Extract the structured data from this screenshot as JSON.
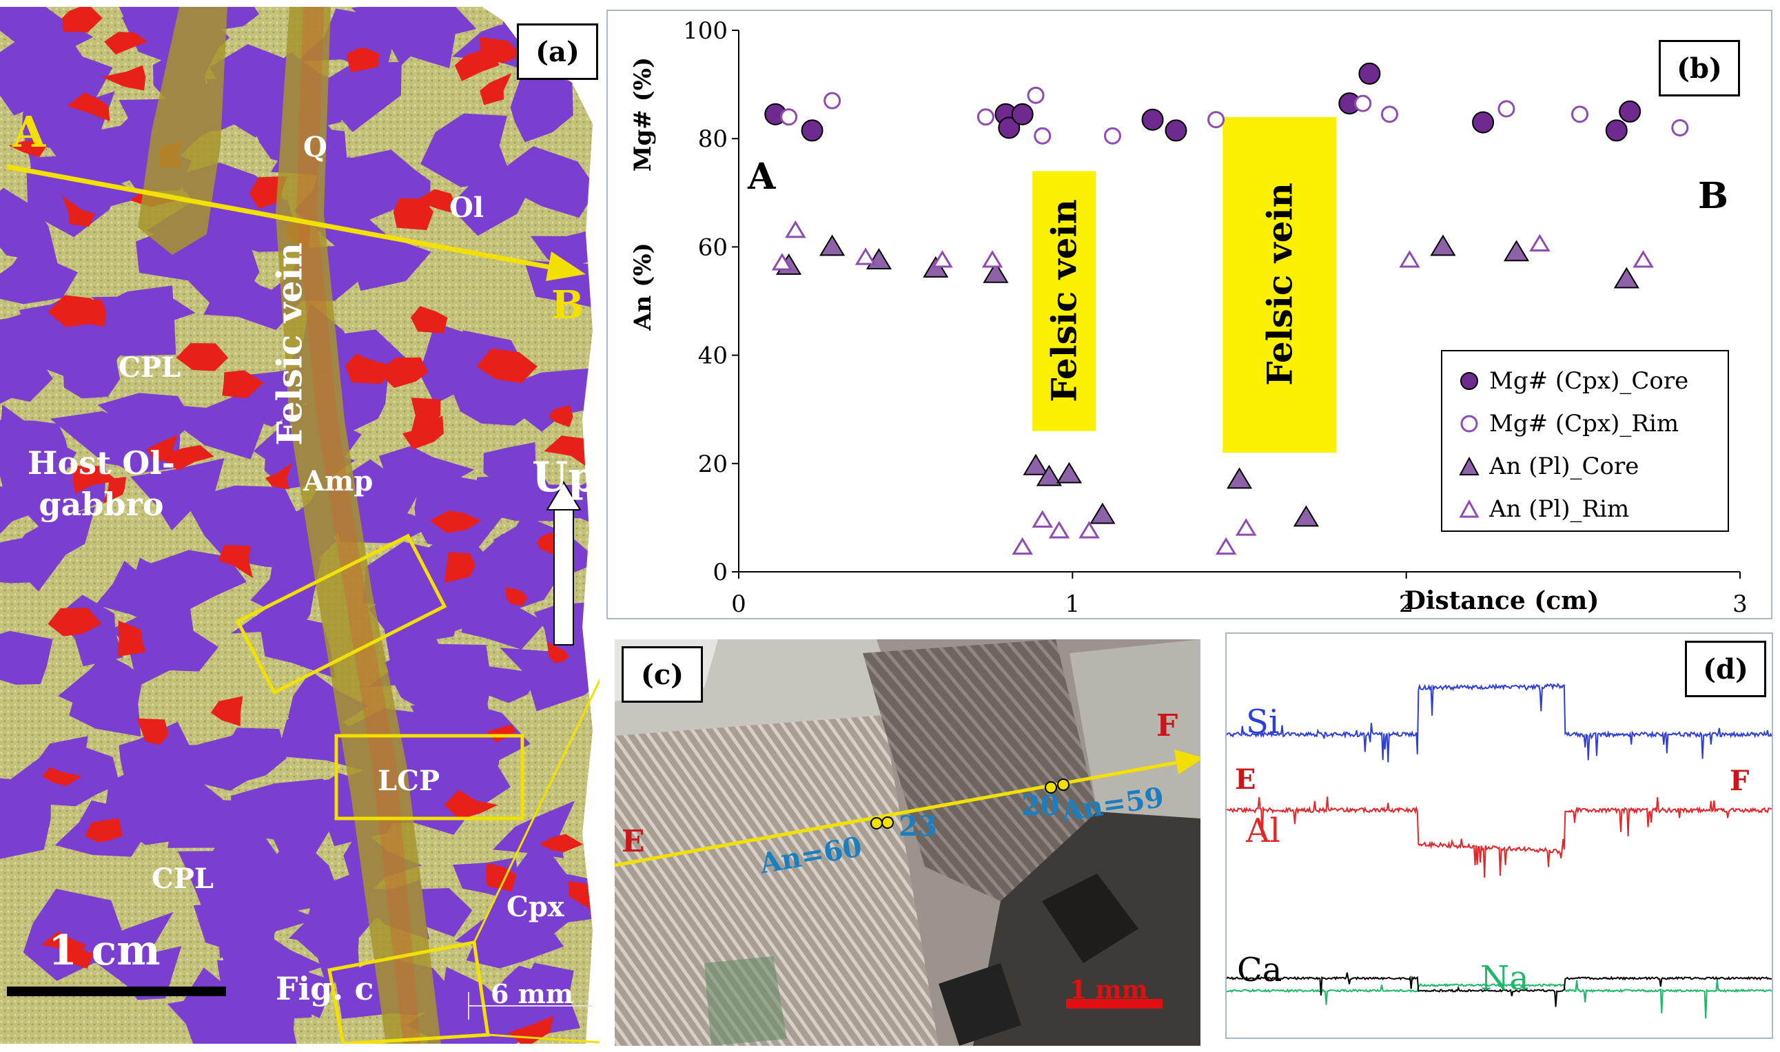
{
  "panel_a": {
    "tag": "(a)",
    "labels": {
      "A": "A",
      "B": "B",
      "Q": "Q",
      "Ol": "Ol",
      "felsic": "Felsic vein",
      "cpl_top": "CPL",
      "host": "Host Ol-",
      "host2": "gabbro",
      "amp": "Amp",
      "up": "Up",
      "lcp": "LCP",
      "cpl_bottom": "CPL",
      "cpx": "Cpx",
      "scale": "1 cm",
      "figc": "Fig. c",
      "mm": "6 mm"
    },
    "colors": {
      "matrix": "#c4c27a",
      "pyroxene": "#7a3ed0",
      "olivine": "#e8201a",
      "vein": "#a8942e",
      "arrow": "#f2e000"
    }
  },
  "panel_b": {
    "tag": "(b)",
    "label_A": "A",
    "label_B": "B",
    "vein_label": "Felsic vein",
    "legend": [
      {
        "label": "Mg# (Cpx)_Core",
        "marker": "circle-filled"
      },
      {
        "label": "Mg# (Cpx)_Rim",
        "marker": "circle-open"
      },
      {
        "label": "An (Pl)_Core",
        "marker": "triangle-filled"
      },
      {
        "label": "An (Pl)_Rim",
        "marker": "triangle-open"
      }
    ],
    "chart_data": {
      "type": "scatter",
      "xlabel": "Distance (cm)",
      "ylabel_top": "Mg# (%)",
      "ylabel_bottom": "An (%)",
      "xlim": [
        0,
        3
      ],
      "ylim": [
        0,
        100
      ],
      "xticks": [
        0,
        1,
        2,
        3
      ],
      "yticks": [
        0,
        20,
        40,
        60,
        80,
        100
      ],
      "vein_zones": [
        [
          0.88,
          1.07
        ],
        [
          1.45,
          1.79
        ]
      ],
      "colors": {
        "filled": "#6e2a8e",
        "open": "#8e4cb0",
        "triangle": "#8e62a8",
        "vein": "#fbf000"
      },
      "series": [
        {
          "name": "Mg# (Cpx)_Core",
          "points": [
            [
              0.11,
              84.5
            ],
            [
              0.22,
              81.5
            ],
            [
              0.8,
              84.5
            ],
            [
              0.81,
              82
            ],
            [
              0.85,
              84.5
            ],
            [
              1.24,
              83.5
            ],
            [
              1.31,
              81.5
            ],
            [
              1.83,
              86.5
            ],
            [
              1.89,
              92
            ],
            [
              2.23,
              83
            ],
            [
              2.63,
              81.5
            ],
            [
              2.67,
              85
            ]
          ]
        },
        {
          "name": "Mg# (Cpx)_Rim",
          "points": [
            [
              0.15,
              84
            ],
            [
              0.28,
              87
            ],
            [
              0.74,
              84
            ],
            [
              0.89,
              88
            ],
            [
              0.91,
              80.5
            ],
            [
              1.12,
              80.5
            ],
            [
              1.43,
              83.5
            ],
            [
              1.87,
              86.5
            ],
            [
              1.95,
              84.5
            ],
            [
              2.3,
              85.5
            ],
            [
              2.52,
              84.5
            ],
            [
              2.82,
              82
            ]
          ]
        },
        {
          "name": "An (Pl)_Core",
          "points": [
            [
              0.15,
              56.5
            ],
            [
              0.28,
              60
            ],
            [
              0.42,
              57.5
            ],
            [
              0.59,
              56
            ],
            [
              0.77,
              55
            ],
            [
              0.89,
              19.5
            ],
            [
              0.93,
              17.5
            ],
            [
              0.99,
              18
            ],
            [
              1.09,
              10.5
            ],
            [
              1.5,
              17
            ],
            [
              1.7,
              10
            ],
            [
              2.11,
              60
            ],
            [
              2.33,
              59
            ],
            [
              2.66,
              54
            ]
          ]
        },
        {
          "name": "An (Pl)_Rim",
          "points": [
            [
              0.13,
              57
            ],
            [
              0.17,
              63
            ],
            [
              0.38,
              58
            ],
            [
              0.61,
              57.5
            ],
            [
              0.76,
              57.5
            ],
            [
              0.85,
              4.5
            ],
            [
              0.91,
              9.5
            ],
            [
              0.96,
              7.5
            ],
            [
              1.05,
              7.5
            ],
            [
              1.46,
              4.5
            ],
            [
              1.52,
              8
            ],
            [
              2.01,
              57.5
            ],
            [
              2.4,
              60.5
            ],
            [
              2.71,
              57.5
            ]
          ]
        }
      ]
    }
  },
  "panel_c": {
    "tag": "(c)",
    "E": "E",
    "F": "F",
    "an60": "An=60",
    "n23": "23",
    "n20": "20",
    "an59": "An=59",
    "scale": "1 mm"
  },
  "panel_d": {
    "tag": "(d)",
    "elements": {
      "si": "Si",
      "al": "Al",
      "ca": "Ca",
      "na": "Na"
    },
    "E": "E",
    "F": "F",
    "colors": {
      "si": "#2f3fd6",
      "al": "#e0272a",
      "ca": "#000000",
      "na": "#1fb86a"
    }
  }
}
